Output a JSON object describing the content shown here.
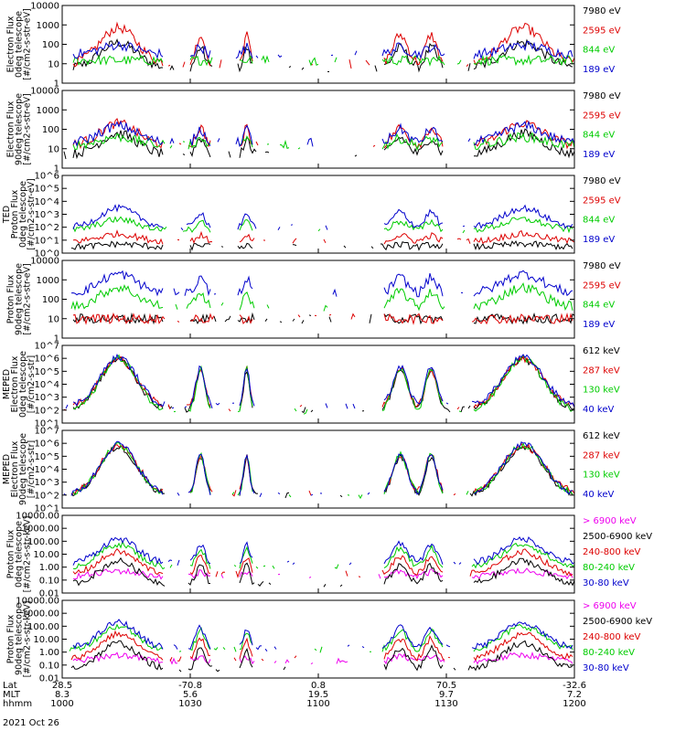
{
  "figure": {
    "date_label": "2021 Oct 26",
    "footer_rows": [
      {
        "key": "lat",
        "label": "Lat",
        "values": [
          "28.5",
          "-70.8",
          "0.8",
          "70.5",
          "-32.6"
        ]
      },
      {
        "key": "mlt",
        "label": "MLT",
        "values": [
          "8.3",
          "5.6",
          "19.5",
          "9.7",
          "7.2"
        ]
      },
      {
        "key": "hhmm",
        "label": "hhmm",
        "values": [
          "1000",
          "1030",
          "1100",
          "1130",
          "1200"
        ]
      }
    ]
  },
  "chart_data": [
    {
      "type": "line",
      "ylabel": [
        "Electron Flux",
        "0deg telescope",
        "[#/cm2-s-str-eV]"
      ],
      "yscale": "log",
      "ylim": [
        1,
        10000
      ],
      "yticks": [
        "1",
        "10",
        "100",
        "1000",
        "10000"
      ],
      "x": [
        "1000",
        "1030",
        "1100",
        "1130",
        "1200"
      ],
      "series": [
        {
          "name": "7980 eV",
          "color": "#000000",
          "peak": 120,
          "floor": 6
        },
        {
          "name": "2595 eV",
          "color": "#dd0000",
          "peak": 700,
          "floor": 10
        },
        {
          "name": "844 eV",
          "color": "#00cc00",
          "peak": 15,
          "floor": 15
        },
        {
          "name": "189 eV",
          "color": "#0000cc",
          "peak": 90,
          "floor": 30
        }
      ]
    },
    {
      "type": "line",
      "ylabel": [
        "Electron Flux",
        "90deg telescope",
        "[#/cm2-s-str-eV]"
      ],
      "yscale": "log",
      "ylim": [
        1,
        10000
      ],
      "yticks": [
        "1",
        "10",
        "100",
        "1000",
        "10000"
      ],
      "x": [
        "1000",
        "1030",
        "1100",
        "1130",
        "1200"
      ],
      "series": [
        {
          "name": "7980 eV",
          "color": "#000000",
          "peak": 60,
          "floor": 5
        },
        {
          "name": "2595 eV",
          "color": "#dd0000",
          "peak": 200,
          "floor": 15
        },
        {
          "name": "844 eV",
          "color": "#00cc00",
          "peak": 40,
          "floor": 15
        },
        {
          "name": "189 eV",
          "color": "#0000cc",
          "peak": 150,
          "floor": 20
        }
      ]
    },
    {
      "type": "line",
      "ylabel": [
        "TED",
        "Proton Flux",
        "0deg telescope",
        "[#/cm2-s-str-eV]"
      ],
      "yscale": "log",
      "ylim": [
        1,
        1000000
      ],
      "yticks": [
        "10^0",
        "10^1",
        "10^2",
        "10^3",
        "10^4",
        "10^5",
        "10^6"
      ],
      "x": [
        "1000",
        "1030",
        "1100",
        "1130",
        "1200"
      ],
      "series": [
        {
          "name": "7980 eV",
          "color": "#000000",
          "peak": 5,
          "floor": 3
        },
        {
          "name": "2595 eV",
          "color": "#dd0000",
          "peak": 30,
          "floor": 8
        },
        {
          "name": "844 eV",
          "color": "#00cc00",
          "peak": 400,
          "floor": 60
        },
        {
          "name": "189 eV",
          "color": "#0000cc",
          "peak": 3000,
          "floor": 100
        }
      ]
    },
    {
      "type": "line",
      "ylabel": [
        "Proton Flux",
        "90deg telescope",
        "[#/cm2-s-str-eV]"
      ],
      "yscale": "log",
      "ylim": [
        1,
        10000
      ],
      "yticks": [
        "1",
        "10",
        "100",
        "1000",
        "10000"
      ],
      "x": [
        "1000",
        "1030",
        "1100",
        "1130",
        "1200"
      ],
      "series": [
        {
          "name": "7980 eV",
          "color": "#000000",
          "peak": 10,
          "floor": 10
        },
        {
          "name": "2595 eV",
          "color": "#dd0000",
          "peak": 10,
          "floor": 10
        },
        {
          "name": "844 eV",
          "color": "#00cc00",
          "peak": 400,
          "floor": 40
        },
        {
          "name": "189 eV",
          "color": "#0000cc",
          "peak": 2000,
          "floor": 200
        }
      ]
    },
    {
      "type": "line",
      "ylabel": [
        "MEPED",
        "Electron Flux",
        "0deg telescope",
        "[#/cm2-s-str]"
      ],
      "yscale": "log",
      "ylim": [
        10,
        10000000
      ],
      "yticks": [
        "10^1",
        "10^2",
        "10^3",
        "10^4",
        "10^5",
        "10^6",
        "10^7"
      ],
      "x": [
        "1000",
        "1030",
        "1100",
        "1130",
        "1200"
      ],
      "series": [
        {
          "name": "612 keV",
          "color": "#000000",
          "peak": 800000,
          "floor": 100
        },
        {
          "name": "287 keV",
          "color": "#dd0000",
          "peak": 900000,
          "floor": 150
        },
        {
          "name": "130 keV",
          "color": "#00cc00",
          "peak": 1000000,
          "floor": 80
        },
        {
          "name": "40 keV",
          "color": "#0000cc",
          "peak": 1200000,
          "floor": 200
        }
      ]
    },
    {
      "type": "line",
      "ylabel": [
        "MEPED",
        "Electron Flux",
        "90deg telescope",
        "[#/cm2-s-str]"
      ],
      "yscale": "log",
      "ylim": [
        10,
        10000000
      ],
      "yticks": [
        "10^1",
        "10^2",
        "10^3",
        "10^4",
        "10^5",
        "10^6",
        "10^7"
      ],
      "x": [
        "1000",
        "1030",
        "1100",
        "1130",
        "1200"
      ],
      "series": [
        {
          "name": "612 keV",
          "color": "#000000",
          "peak": 500000,
          "floor": 100
        },
        {
          "name": "287 keV",
          "color": "#dd0000",
          "peak": 700000,
          "floor": 150
        },
        {
          "name": "130 keV",
          "color": "#00cc00",
          "peak": 800000,
          "floor": 100
        },
        {
          "name": "40 keV",
          "color": "#0000cc",
          "peak": 900000,
          "floor": 100
        }
      ]
    },
    {
      "type": "line",
      "ylabel": [
        "Proton Flux",
        "0deg telescope",
        "[#/cm2-s-str-keV]"
      ],
      "yscale": "log",
      "ylim": [
        0.01,
        10000
      ],
      "yticks": [
        "0.01",
        "0.10",
        "1.00",
        "10.00",
        "100.00",
        "1000.00",
        "10000.00"
      ],
      "x": [
        "1000",
        "1030",
        "1100",
        "1130",
        "1200"
      ],
      "series": [
        {
          "name": "> 6900 keV",
          "color": "#ee00ee",
          "peak": 0.5,
          "floor": 0.2
        },
        {
          "name": "2500-6900 keV",
          "color": "#000000",
          "peak": 3,
          "floor": 0.05
        },
        {
          "name": "240-800 keV",
          "color": "#dd0000",
          "peak": 15,
          "floor": 0.3
        },
        {
          "name": "80-240 keV",
          "color": "#00cc00",
          "peak": 60,
          "floor": 1
        },
        {
          "name": "30-80 keV",
          "color": "#0000cc",
          "peak": 150,
          "floor": 2
        }
      ]
    },
    {
      "type": "line",
      "ylabel": [
        "Proton Flux",
        "90deg telescope",
        "[#/cm2-s-str-keV]"
      ],
      "yscale": "log",
      "ylim": [
        0.01,
        10000
      ],
      "yticks": [
        "0.01",
        "0.10",
        "1.00",
        "10.00",
        "100.00",
        "1000.00",
        "10000.00"
      ],
      "x": [
        "1000",
        "1030",
        "1100",
        "1130",
        "1200"
      ],
      "series": [
        {
          "name": "> 6900 keV",
          "color": "#ee00ee",
          "peak": 0.6,
          "floor": 0.2
        },
        {
          "name": "2500-6900 keV",
          "color": "#000000",
          "peak": 5,
          "floor": 0.05
        },
        {
          "name": "240-800 keV",
          "color": "#dd0000",
          "peak": 25,
          "floor": 0.3
        },
        {
          "name": "80-240 keV",
          "color": "#00cc00",
          "peak": 100,
          "floor": 1.5
        },
        {
          "name": "30-80 keV",
          "color": "#0000cc",
          "peak": 200,
          "floor": 2
        }
      ]
    }
  ]
}
